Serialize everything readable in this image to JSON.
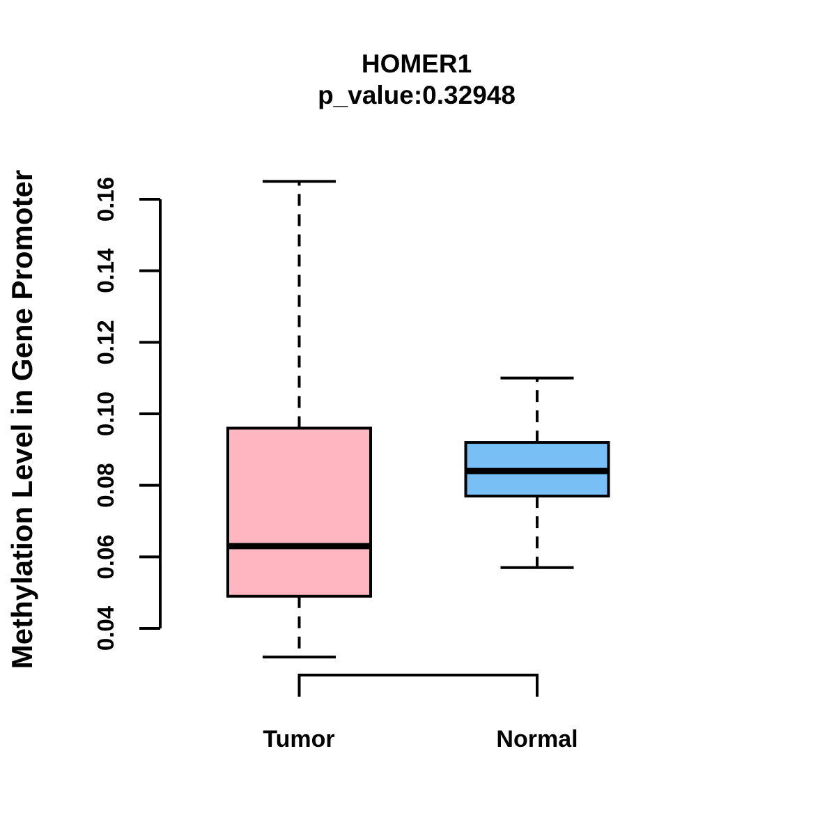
{
  "chart_data": {
    "type": "boxplot",
    "title": "HOMER1",
    "subtitle": "p_value:0.32948",
    "ylabel": "Methylation Level in Gene Promoter",
    "xlabel": "",
    "categories": [
      "Tumor",
      "Normal"
    ],
    "series": [
      {
        "name": "Tumor",
        "fill_color": "#FFB6C1",
        "whisker_low": 0.032,
        "q1": 0.049,
        "median": 0.063,
        "q3": 0.096,
        "whisker_high": 0.165
      },
      {
        "name": "Normal",
        "fill_color": "#78BFF5",
        "whisker_low": 0.057,
        "q1": 0.077,
        "median": 0.084,
        "q3": 0.092,
        "whisker_high": 0.11
      }
    ],
    "y_ticks": [
      "0.04",
      "0.06",
      "0.08",
      "0.10",
      "0.12",
      "0.14",
      "0.16"
    ],
    "y_tick_values": [
      0.04,
      0.06,
      0.08,
      0.1,
      0.12,
      0.14,
      0.16
    ],
    "ylim": [
      0.04,
      0.16
    ],
    "grid": false,
    "legend_position": "none",
    "stroke_color": "#000000",
    "background_color": "#FFFFFF"
  }
}
